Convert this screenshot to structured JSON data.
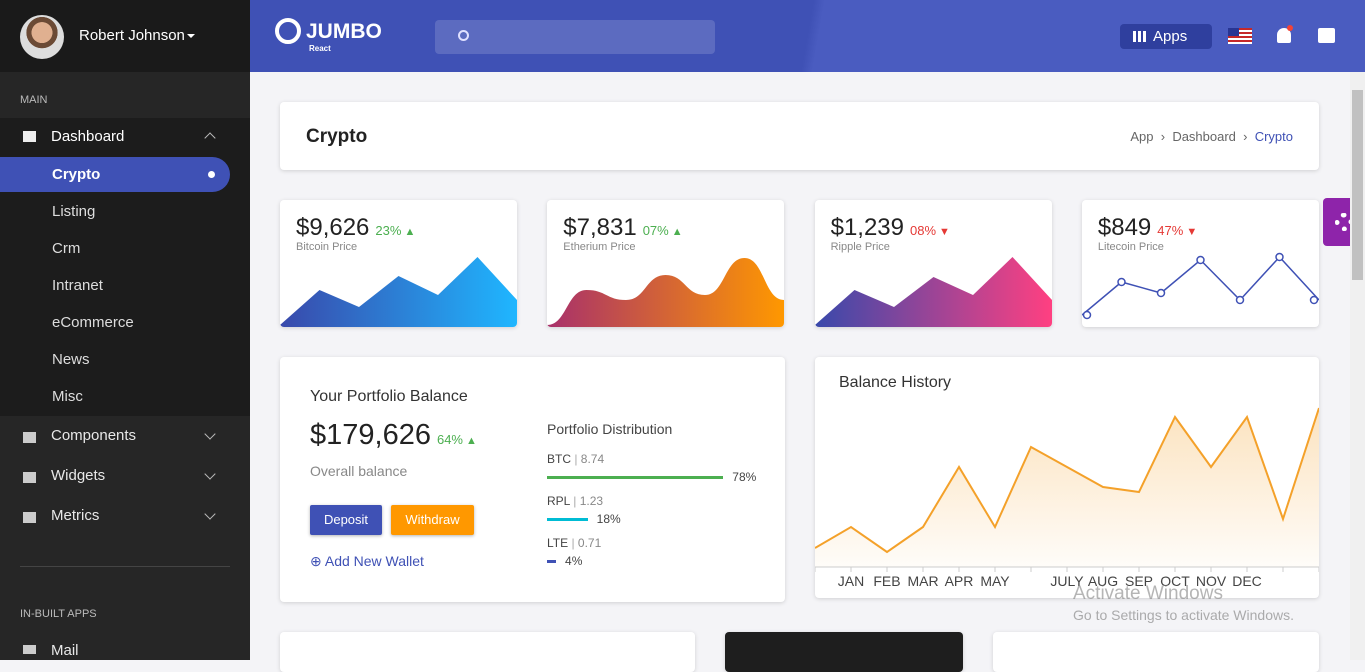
{
  "sidebar": {
    "user": "Robert Johnson",
    "main_label": "MAIN",
    "dashboard": "Dashboard",
    "dashboard_items": [
      "Crypto",
      "Listing",
      "Crm",
      "Intranet",
      "eCommerce",
      "News",
      "Misc"
    ],
    "menu": [
      "Components",
      "Widgets",
      "Metrics"
    ],
    "apps_label": "IN-BUILT APPS",
    "apps": [
      "Mail"
    ]
  },
  "header": {
    "logo": "JUMBO",
    "logo_sub": "React",
    "apps": "Apps"
  },
  "page": {
    "title": "Crypto",
    "breadcrumb": [
      "App",
      "Dashboard",
      "Crypto"
    ]
  },
  "cards": [
    {
      "price": "$9,626",
      "change": "23%",
      "trend": "up",
      "label": "Bitcoin Price",
      "style": "area",
      "colors": [
        "#3949ab",
        "#1fb6ff"
      ],
      "values": [
        2,
        37,
        20,
        51,
        32,
        70,
        27
      ],
      "ylim": [
        0,
        80
      ]
    },
    {
      "price": "$7,831",
      "change": "07%",
      "trend": "up",
      "label": "Etherium Price",
      "style": "smooth",
      "colors": [
        "#a8306b",
        "#ff9800"
      ],
      "values": [
        2,
        37,
        27,
        52,
        32,
        69,
        27
      ],
      "ylim": [
        0,
        80
      ]
    },
    {
      "price": "$1,239",
      "change": "08%",
      "trend": "down",
      "label": "Ripple Price",
      "style": "area",
      "colors": [
        "#3949ab",
        "#ff4081"
      ],
      "values": [
        2,
        37,
        20,
        50,
        32,
        70,
        27
      ],
      "ylim": [
        0,
        80
      ]
    },
    {
      "price": "$849",
      "change": "47%",
      "trend": "down",
      "label": "Litecoin Price",
      "style": "line",
      "colors": [
        "#3f51b5",
        "#3f51b5"
      ],
      "values": [
        12,
        45,
        34,
        67,
        27,
        70,
        27
      ],
      "ylim": [
        0,
        80
      ]
    }
  ],
  "portfolio": {
    "title": "Your Portfolio Balance",
    "balance": "$179,626",
    "change": "64%",
    "subtitle": "Overall balance",
    "deposit": "Deposit",
    "withdraw": "Withdraw",
    "add_wallet": "Add New Wallet",
    "distribution_title": "Portfolio Distribution",
    "distribution": [
      {
        "coin": "BTC",
        "amount": "8.74",
        "percent": 78,
        "percent_label": "78%",
        "color": "#4caf50"
      },
      {
        "coin": "RPL",
        "amount": "1.23",
        "percent": 18,
        "percent_label": "18%",
        "color": "#00bcd4"
      },
      {
        "coin": "LTE",
        "amount": "0.71",
        "percent": 4,
        "percent_label": "4%",
        "color": "#3f51b5"
      }
    ]
  },
  "balance_history": {
    "title": "Balance History",
    "type": "area",
    "color": "#f4a12a",
    "categories": [
      null,
      "JAN",
      "FEB",
      "MAR",
      "APR",
      "MAY",
      null,
      "JULY",
      "AUG",
      "SEP",
      "OCT",
      "NOV",
      "DEC",
      null,
      null
    ],
    "values": [
      19,
      40,
      15,
      40,
      100,
      40,
      120,
      100,
      80,
      75,
      150,
      100,
      150,
      48,
      159
    ],
    "ylim": [
      0,
      160
    ]
  },
  "watermark": {
    "title": "Activate Windows",
    "text": "Go to Settings to activate Windows."
  }
}
